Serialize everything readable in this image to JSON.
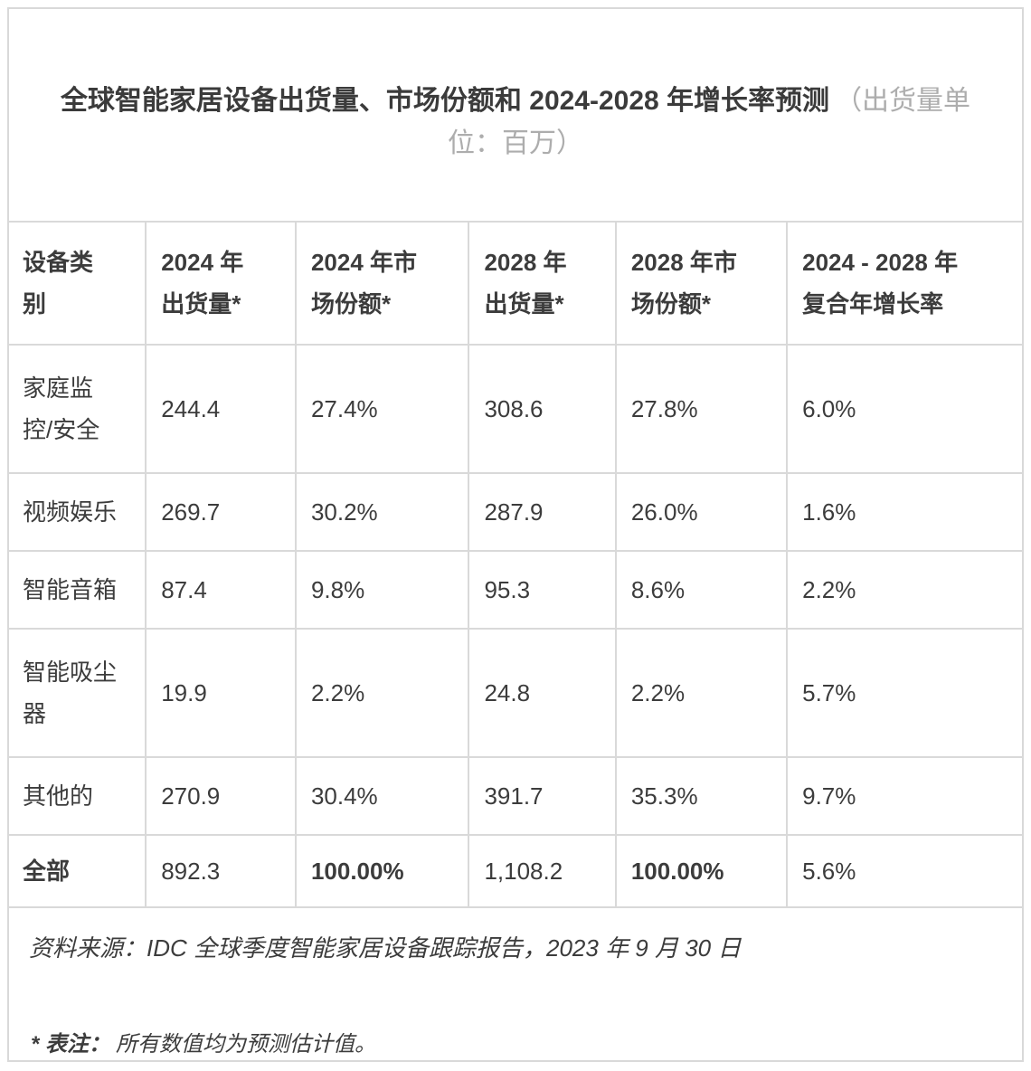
{
  "title": {
    "main": "全球智能家居设备出货量、市场份额和 2024-2028 年增长率预测",
    "unit_note": "（出货量单位：百万）"
  },
  "table": {
    "headers": [
      [
        "设备类",
        "别"
      ],
      [
        "2024 年",
        "出货量*"
      ],
      [
        "2024 年市",
        "场份额*"
      ],
      [
        "2028 年",
        "出货量*"
      ],
      [
        "2028 年市",
        "场份额*"
      ],
      [
        "2024 - 2028 年",
        "复合年增长率"
      ]
    ],
    "rows": [
      {
        "label": [
          "家庭监",
          "控/安全"
        ],
        "values": [
          "244.4",
          "27.4%",
          "308.6",
          "27.8%",
          "6.0%"
        ]
      },
      {
        "label": [
          "视频娱乐"
        ],
        "values": [
          "269.7",
          "30.2%",
          "287.9",
          "26.0%",
          "1.6%"
        ]
      },
      {
        "label": [
          "智能音箱"
        ],
        "values": [
          "87.4",
          "9.8%",
          "95.3",
          "8.6%",
          "2.2%"
        ]
      },
      {
        "label": [
          "智能吸尘",
          "器"
        ],
        "values": [
          "19.9",
          "2.2%",
          "24.8",
          "2.2%",
          "5.7%"
        ]
      },
      {
        "label": [
          "其他的"
        ],
        "values": [
          "270.9",
          "30.4%",
          "391.7",
          "35.3%",
          "9.7%"
        ]
      },
      {
        "label": [
          "全部"
        ],
        "values": [
          "892.3",
          "100.00%",
          "1,108.2",
          "100.00%",
          "5.6%"
        ]
      }
    ]
  },
  "footer": {
    "source": "资料来源：IDC 全球季度智能家居设备跟踪报告，2023 年 9 月 30 日",
    "footnote_label": "* 表注：",
    "footnote_text": "所有数值均为预测估计值。"
  },
  "colors": {
    "text": "#3c3c3c",
    "muted_title": "#adadad",
    "border": "#d9d9d9",
    "background": "#ffffff"
  }
}
